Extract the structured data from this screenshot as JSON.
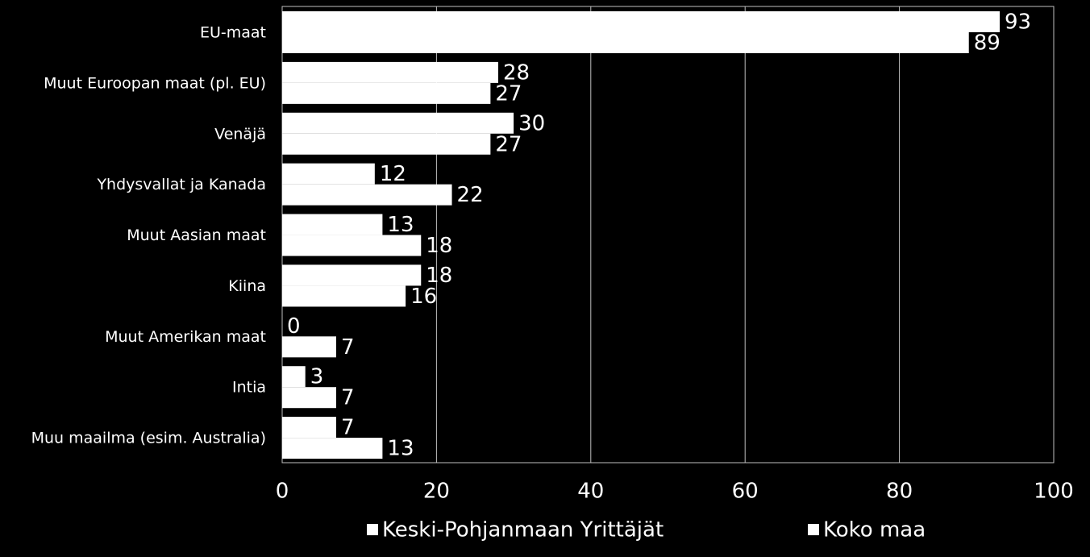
{
  "chart_data": {
    "type": "hbar",
    "categories": [
      "EU-maat",
      "Muut Euroopan maat (pl. EU)",
      "Venäjä",
      "Yhdysvallat ja Kanada",
      "Muut Aasian maat",
      "Kiina",
      "Muut Amerikan maat",
      "Intia",
      "Muu maailma (esim. Australia)"
    ],
    "series": [
      {
        "name": "Keski-Pohjanmaan Yrittäjät",
        "color": "#ffffff",
        "values": [
          93,
          28,
          30,
          12,
          13,
          18,
          0,
          3,
          7
        ]
      },
      {
        "name": "Koko maa",
        "color": "#ffffff",
        "values": [
          89,
          27,
          27,
          22,
          18,
          16,
          7,
          7,
          13
        ]
      }
    ],
    "xlim": [
      0,
      100
    ],
    "xticks": [
      0,
      20,
      40,
      60,
      80,
      100
    ],
    "grid": true,
    "legend": "bottom"
  }
}
